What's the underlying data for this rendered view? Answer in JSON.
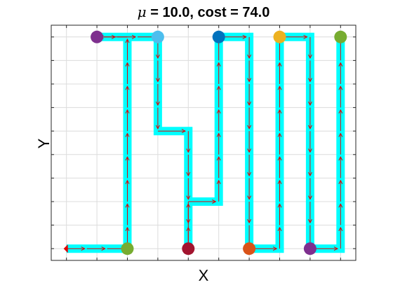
{
  "chart_data": {
    "type": "line",
    "title_mu_symbol": "μ",
    "title_rest": " = 10.0, cost = 74.0",
    "xlabel": "X",
    "ylabel": "Y",
    "xlim": [
      0.5,
      10.5
    ],
    "ylim": [
      0.5,
      10.5
    ],
    "grid": true,
    "show_tick_labels": false,
    "path": {
      "color": "#00FFFF",
      "arrow_color": "#E00000",
      "points": [
        [
          1,
          1
        ],
        [
          3,
          1
        ],
        [
          3,
          10
        ],
        [
          2,
          10
        ],
        [
          4,
          10
        ],
        [
          4,
          6
        ],
        [
          5,
          6
        ],
        [
          5,
          1
        ],
        [
          5,
          3
        ],
        [
          6,
          3
        ],
        [
          6,
          10
        ],
        [
          7,
          10
        ],
        [
          7,
          1
        ],
        [
          8,
          1
        ],
        [
          8,
          10
        ],
        [
          9,
          10
        ],
        [
          9,
          1
        ],
        [
          10,
          1
        ],
        [
          10,
          10
        ]
      ]
    },
    "start_marker": {
      "x": 1,
      "y": 1,
      "color": "#E00000"
    },
    "markers": [
      {
        "x": 2,
        "y": 10,
        "color": "#7E2F8E"
      },
      {
        "x": 3,
        "y": 1,
        "color": "#77AC30"
      },
      {
        "x": 4,
        "y": 10,
        "color": "#4DBEEE"
      },
      {
        "x": 5,
        "y": 1,
        "color": "#A2142F"
      },
      {
        "x": 6,
        "y": 10,
        "color": "#0072BD"
      },
      {
        "x": 7,
        "y": 1,
        "color": "#D95319"
      },
      {
        "x": 8,
        "y": 10,
        "color": "#EDB120"
      },
      {
        "x": 9,
        "y": 1,
        "color": "#7E2F8E"
      },
      {
        "x": 10,
        "y": 10,
        "color": "#77AC30"
      }
    ]
  }
}
